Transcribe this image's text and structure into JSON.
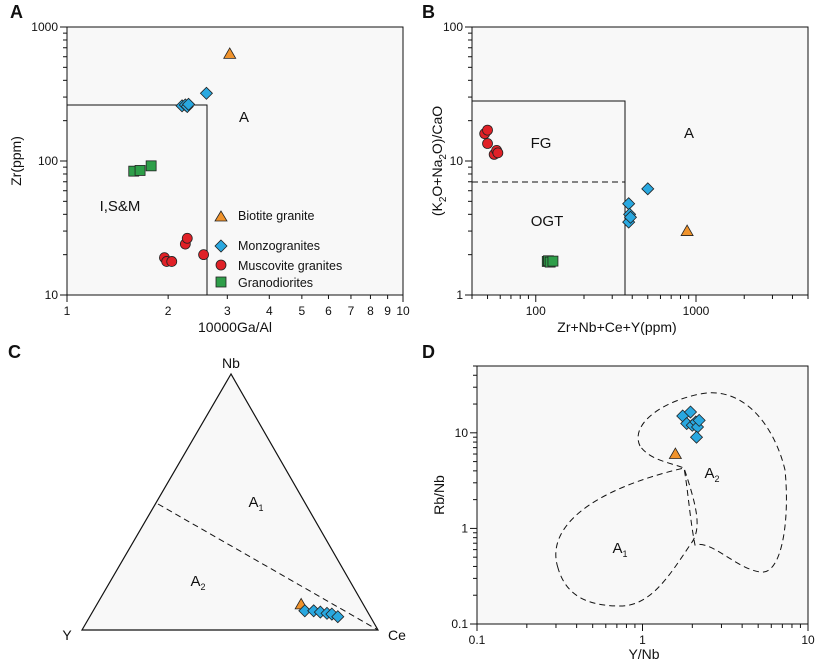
{
  "figure": {
    "panel_letters": [
      "A",
      "B",
      "C",
      "D"
    ],
    "colors": {
      "biotite": "#f0932c",
      "monzo": "#29a8e0",
      "muscovite": "#e02127",
      "grano": "#2e9e49",
      "plot_bg": "#f8f8f8"
    }
  },
  "chart_data": [
    {
      "panel": "A",
      "type": "scatter",
      "xlabel": "10000Ga/Al",
      "ylabel": "Zr(ppm)",
      "xscale": "log",
      "yscale": "log",
      "xlim": [
        1,
        10
      ],
      "ylim": [
        10,
        1000
      ],
      "x_ticks": [
        "1",
        "2",
        "3",
        "4",
        "5",
        "6",
        "7",
        "8",
        "9",
        "10"
      ],
      "y_ticks": [
        "10",
        "100",
        "1000"
      ],
      "region_labels": [
        "A",
        "I,S&M"
      ],
      "boundaries": {
        "x": 2.6,
        "y": 250
      },
      "legend": {
        "position": "bottom-right",
        "entries": [
          {
            "label": "Biotite granite",
            "series": "biotite"
          },
          {
            "label": "Monzogranites",
            "series": "monzo"
          },
          {
            "label": "Muscovite granites",
            "series": "muscovite"
          },
          {
            "label": "Granodiorites",
            "series": "grano"
          }
        ]
      },
      "series": [
        {
          "name": "biotite",
          "points": [
            [
              3.05,
              630
            ]
          ]
        },
        {
          "name": "monzo",
          "points": [
            [
              2.2,
              258
            ],
            [
              2.25,
              262
            ],
            [
              2.28,
              255
            ],
            [
              2.3,
              265
            ],
            [
              2.6,
              320
            ]
          ]
        },
        {
          "name": "muscovite",
          "points": [
            [
              1.95,
              19
            ],
            [
              1.98,
              17.8
            ],
            [
              2.05,
              17.8
            ],
            [
              2.25,
              24
            ],
            [
              2.28,
              26.5
            ],
            [
              2.55,
              20
            ]
          ]
        },
        {
          "name": "grano",
          "points": [
            [
              1.58,
              84
            ],
            [
              1.65,
              85
            ],
            [
              1.78,
              92
            ]
          ]
        }
      ]
    },
    {
      "panel": "B",
      "type": "scatter",
      "xlabel": "Zr+Nb+Ce+Y(ppm)",
      "ylabel": "(K2O+Na2O)/CaO",
      "xscale": "log",
      "yscale": "log",
      "xlim": [
        40,
        5000
      ],
      "ylim": [
        1,
        100
      ],
      "x_ticks": [
        "100",
        "1000"
      ],
      "y_ticks": [
        "1",
        "10",
        "100"
      ],
      "region_labels": [
        "FG",
        "OGT",
        "A"
      ],
      "boundaries": {
        "x": 350,
        "y_top": 28,
        "y_dashed": 7
      },
      "series": [
        {
          "name": "muscovite",
          "points": [
            [
              48,
              16
            ],
            [
              50,
              17
            ],
            [
              50,
              13.5
            ],
            [
              55,
              11.2
            ],
            [
              57,
              12
            ],
            [
              58,
              11.5
            ]
          ]
        },
        {
          "name": "monzo",
          "points": [
            [
              380,
              4.8
            ],
            [
              380,
              3.5
            ],
            [
              385,
              4.0
            ],
            [
              390,
              3.8
            ],
            [
              500,
              6.2
            ]
          ]
        },
        {
          "name": "biotite",
          "points": [
            [
              880,
              3.0
            ]
          ]
        },
        {
          "name": "grano",
          "points": [
            [
              118,
              1.78
            ],
            [
              120,
              1.8
            ],
            [
              123,
              1.76
            ],
            [
              128,
              1.79
            ]
          ]
        }
      ]
    },
    {
      "panel": "C",
      "type": "scatter",
      "subtype": "ternary",
      "apices": [
        "Nb",
        "Y",
        "Ce"
      ],
      "region_labels": [
        "A1",
        "A2"
      ],
      "divider": {
        "from": [
          0.45,
          0.55,
          0
        ],
        "to": [
          0,
          0,
          1
        ]
      },
      "series": [
        {
          "name": "biotite",
          "points": [
            [
              0.1,
              0.21,
              0.69
            ]
          ]
        },
        {
          "name": "monzo",
          "points": [
            [
              0.075,
              0.21,
              0.715
            ],
            [
              0.075,
              0.18,
              0.745
            ],
            [
              0.07,
              0.16,
              0.77
            ],
            [
              0.065,
              0.14,
              0.795
            ],
            [
              0.062,
              0.125,
              0.813
            ],
            [
              0.052,
              0.11,
              0.838
            ]
          ]
        }
      ]
    },
    {
      "panel": "D",
      "type": "scatter",
      "xlabel": "Y/Nb",
      "ylabel": "Rb/Nb",
      "xscale": "log",
      "yscale": "log",
      "xlim": [
        0.1,
        10
      ],
      "ylim": [
        0.1,
        50
      ],
      "x_ticks": [
        "0.1",
        "1",
        "10"
      ],
      "y_ticks": [
        "0.1",
        "1",
        "10"
      ],
      "region_labels": [
        "A1",
        "A2"
      ],
      "series": [
        {
          "name": "biotite",
          "points": [
            [
              1.58,
              6.0
            ]
          ]
        },
        {
          "name": "monzo",
          "points": [
            [
              1.75,
              15
            ],
            [
              1.85,
              12.5
            ],
            [
              1.95,
              16.5
            ],
            [
              2.0,
              12
            ],
            [
              2.1,
              13
            ],
            [
              2.15,
              11.5
            ],
            [
              2.2,
              13.5
            ],
            [
              2.12,
              9
            ]
          ]
        }
      ]
    }
  ]
}
